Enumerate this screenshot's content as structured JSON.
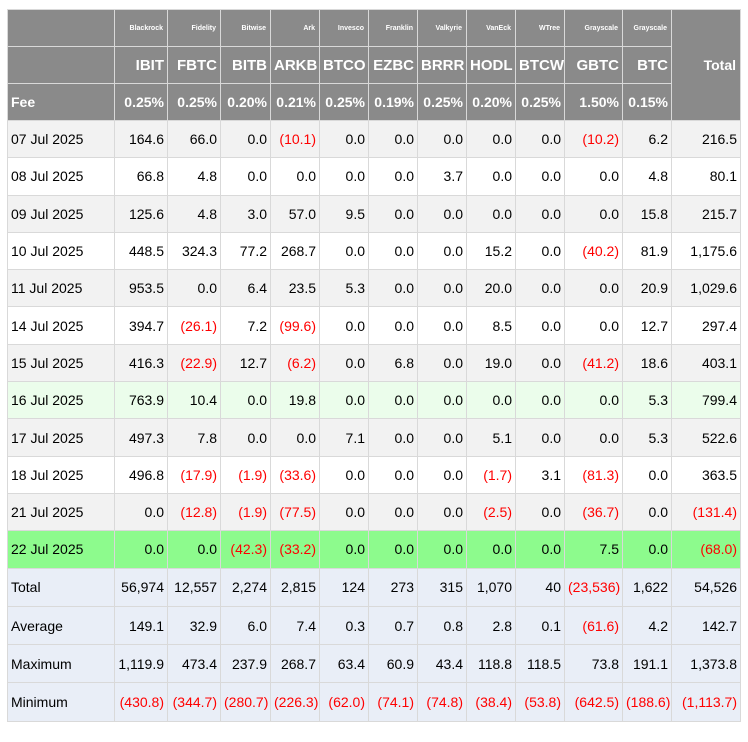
{
  "header": {
    "total_label": "Total",
    "fee_label": "Fee",
    "funds": [
      {
        "issuer": "Blackrock",
        "ticker": "IBIT",
        "fee": "0.25%"
      },
      {
        "issuer": "Fidelity",
        "ticker": "FBTC",
        "fee": "0.25%"
      },
      {
        "issuer": "Bitwise",
        "ticker": "BITB",
        "fee": "0.20%"
      },
      {
        "issuer": "Ark",
        "ticker": "ARKB",
        "fee": "0.21%"
      },
      {
        "issuer": "Invesco",
        "ticker": "BTCO",
        "fee": "0.25%"
      },
      {
        "issuer": "Franklin",
        "ticker": "EZBC",
        "fee": "0.19%"
      },
      {
        "issuer": "Valkyrie",
        "ticker": "BRRR",
        "fee": "0.25%"
      },
      {
        "issuer": "VanEck",
        "ticker": "HODL",
        "fee": "0.20%"
      },
      {
        "issuer": "WTree",
        "ticker": "BTCW",
        "fee": "0.25%"
      },
      {
        "issuer": "Grayscale",
        "ticker": "GBTC",
        "fee": "1.50%"
      },
      {
        "issuer": "Grayscale",
        "ticker": "BTC",
        "fee": "0.15%"
      }
    ]
  },
  "rows": [
    {
      "date": "07 Jul 2025",
      "style": "odd",
      "values": [
        "164.6",
        "66.0",
        "0.0",
        "(10.1)",
        "0.0",
        "0.0",
        "0.0",
        "0.0",
        "0.0",
        "(10.2)",
        "6.2",
        "216.5"
      ]
    },
    {
      "date": "08 Jul 2025",
      "style": "even",
      "values": [
        "66.8",
        "4.8",
        "0.0",
        "0.0",
        "0.0",
        "0.0",
        "3.7",
        "0.0",
        "0.0",
        "0.0",
        "4.8",
        "80.1"
      ]
    },
    {
      "date": "09 Jul 2025",
      "style": "odd",
      "values": [
        "125.6",
        "4.8",
        "3.0",
        "57.0",
        "9.5",
        "0.0",
        "0.0",
        "0.0",
        "0.0",
        "0.0",
        "15.8",
        "215.7"
      ]
    },
    {
      "date": "10 Jul 2025",
      "style": "even",
      "values": [
        "448.5",
        "324.3",
        "77.2",
        "268.7",
        "0.0",
        "0.0",
        "0.0",
        "15.2",
        "0.0",
        "(40.2)",
        "81.9",
        "1,175.6"
      ]
    },
    {
      "date": "11 Jul 2025",
      "style": "odd",
      "values": [
        "953.5",
        "0.0",
        "6.4",
        "23.5",
        "5.3",
        "0.0",
        "0.0",
        "20.0",
        "0.0",
        "0.0",
        "20.9",
        "1,029.6"
      ]
    },
    {
      "date": "14 Jul 2025",
      "style": "even",
      "values": [
        "394.7",
        "(26.1)",
        "7.2",
        "(99.6)",
        "0.0",
        "0.0",
        "0.0",
        "8.5",
        "0.0",
        "0.0",
        "12.7",
        "297.4"
      ]
    },
    {
      "date": "15 Jul 2025",
      "style": "odd",
      "values": [
        "416.3",
        "(22.9)",
        "12.7",
        "(6.2)",
        "0.0",
        "6.8",
        "0.0",
        "19.0",
        "0.0",
        "(41.2)",
        "18.6",
        "403.1"
      ]
    },
    {
      "date": "16 Jul 2025",
      "style": "hl",
      "values": [
        "763.9",
        "10.4",
        "0.0",
        "19.8",
        "0.0",
        "0.0",
        "0.0",
        "0.0",
        "0.0",
        "0.0",
        "5.3",
        "799.4"
      ]
    },
    {
      "date": "17 Jul 2025",
      "style": "odd",
      "values": [
        "497.3",
        "7.8",
        "0.0",
        "0.0",
        "7.1",
        "0.0",
        "0.0",
        "5.1",
        "0.0",
        "0.0",
        "5.3",
        "522.6"
      ]
    },
    {
      "date": "18 Jul 2025",
      "style": "even",
      "values": [
        "496.8",
        "(17.9)",
        "(1.9)",
        "(33.6)",
        "0.0",
        "0.0",
        "0.0",
        "(1.7)",
        "3.1",
        "(81.3)",
        "0.0",
        "363.5"
      ]
    },
    {
      "date": "21 Jul 2025",
      "style": "odd",
      "values": [
        "0.0",
        "(12.8)",
        "(1.9)",
        "(77.5)",
        "0.0",
        "0.0",
        "0.0",
        "(2.5)",
        "0.0",
        "(36.7)",
        "0.0",
        "(131.4)"
      ]
    },
    {
      "date": "22 Jul 2025",
      "style": "latest",
      "values": [
        "0.0",
        "0.0",
        "(42.3)",
        "(33.2)",
        "0.0",
        "0.0",
        "0.0",
        "0.0",
        "0.0",
        "7.5",
        "0.0",
        "(68.0)"
      ]
    }
  ],
  "summary": [
    {
      "label": "Total",
      "values": [
        "56,974",
        "12,557",
        "2,274",
        "2,815",
        "124",
        "273",
        "315",
        "1,070",
        "40",
        "(23,536)",
        "1,622",
        "54,526"
      ]
    },
    {
      "label": "Average",
      "values": [
        "149.1",
        "32.9",
        "6.0",
        "7.4",
        "0.3",
        "0.7",
        "0.8",
        "2.8",
        "0.1",
        "(61.6)",
        "4.2",
        "142.7"
      ]
    },
    {
      "label": "Maximum",
      "values": [
        "1,119.9",
        "473.4",
        "237.9",
        "268.7",
        "63.4",
        "60.9",
        "43.4",
        "118.8",
        "118.5",
        "73.8",
        "191.1",
        "1,373.8"
      ]
    },
    {
      "label": "Minimum",
      "values": [
        "(430.8)",
        "(344.7)",
        "(280.7)",
        "(226.3)",
        "(62.0)",
        "(74.1)",
        "(74.8)",
        "(38.4)",
        "(53.8)",
        "(642.5)",
        "(188.6)",
        "(1,113.7)"
      ]
    }
  ],
  "colors": {
    "header_bg": "#8a8a8a",
    "header_text": "#ffffff",
    "row_odd_bg": "#f2f2f2",
    "row_even_bg": "#ffffff",
    "row_highlight_bg": "#ebfdeb",
    "row_latest_bg": "#8dfb8d",
    "summary_bg": "#e9eef7",
    "negative_text": "#ff0000"
  }
}
